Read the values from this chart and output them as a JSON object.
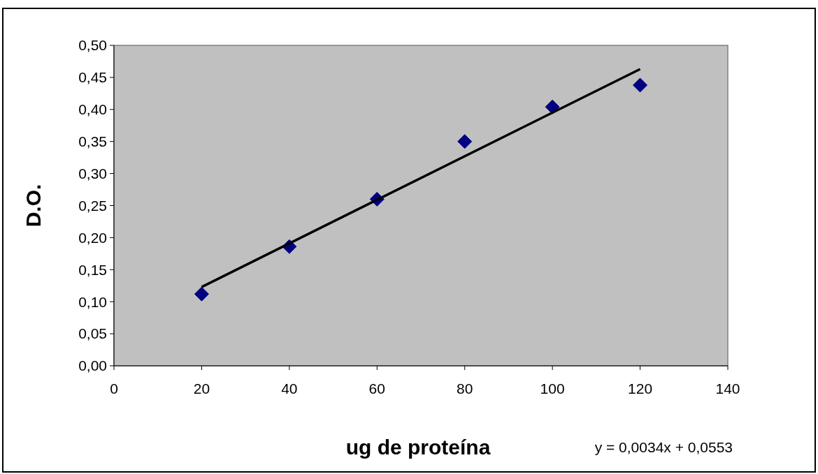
{
  "chart_data": {
    "type": "scatter",
    "xlabel": "ug de proteína",
    "ylabel": "D.O.",
    "xlim": [
      0,
      140
    ],
    "xticks": [
      0,
      20,
      40,
      60,
      80,
      100,
      120,
      140
    ],
    "ylim": [
      0,
      0.5
    ],
    "yticks": [
      {
        "value": 0,
        "label": "0,00"
      },
      {
        "value": 0.05,
        "label": "0,05"
      },
      {
        "value": 0.1,
        "label": "0,10"
      },
      {
        "value": 0.15,
        "label": "0,15"
      },
      {
        "value": 0.2,
        "label": "0,20"
      },
      {
        "value": 0.25,
        "label": "0,25"
      },
      {
        "value": 0.3,
        "label": "0,30"
      },
      {
        "value": 0.35,
        "label": "0,35"
      },
      {
        "value": 0.4,
        "label": "0,40"
      },
      {
        "value": 0.45,
        "label": "0,45"
      },
      {
        "value": 0.5,
        "label": "0,50"
      }
    ],
    "series": [
      {
        "color": "#000080",
        "marker": "diamond",
        "x": [
          20,
          40,
          60,
          80,
          100,
          120
        ],
        "values": [
          0.112,
          0.186,
          0.26,
          0.35,
          0.404,
          0.438
        ]
      },
      {
        "type": "line",
        "color": "#000000",
        "marker": "none",
        "line_style": "solid",
        "x": [
          20,
          120
        ],
        "values": [
          0.123,
          0.463
        ]
      }
    ],
    "annotations": [
      "y = 0,0034x + 0,0553"
    ]
  }
}
